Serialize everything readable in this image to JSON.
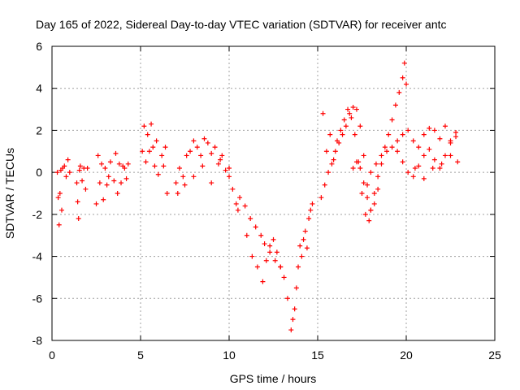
{
  "chart_data": {
    "type": "scatter",
    "title": "Day 165 of 2022, Sidereal Day-to-day VTEC variation (SDTVAR) for receiver antc",
    "xlabel": "GPS time / hours",
    "ylabel": "SDTVAR / TECUs",
    "xlim": [
      0,
      25
    ],
    "ylim": [
      -8,
      6
    ],
    "xticks": [
      0,
      5,
      10,
      15,
      20,
      25
    ],
    "xtick_labels": [
      "0",
      "5",
      "10",
      "15",
      "20",
      "25"
    ],
    "yticks": [
      -8,
      -6,
      -4,
      -2,
      0,
      2,
      4,
      6
    ],
    "ytick_labels": [
      "-8",
      "-6",
      "-4",
      "-2",
      "0",
      "2",
      "4",
      "6"
    ],
    "grid": true,
    "marker": "+",
    "color": "#ff0000",
    "series": [
      {
        "name": "SDTVAR",
        "x": [
          0.3,
          0.35,
          0.4,
          0.45,
          0.5,
          0.55,
          0.6,
          0.7,
          0.8,
          0.9,
          1.0,
          1.4,
          1.45,
          1.5,
          1.55,
          1.6,
          1.7,
          1.8,
          1.9,
          2.0,
          2.5,
          2.6,
          2.7,
          2.8,
          2.9,
          3.0,
          3.1,
          3.2,
          3.3,
          3.5,
          3.6,
          3.7,
          3.8,
          3.9,
          4.0,
          4.1,
          4.2,
          4.3,
          5.1,
          5.2,
          5.3,
          5.4,
          5.5,
          5.6,
          5.7,
          5.8,
          5.9,
          6.0,
          6.2,
          6.3,
          6.4,
          6.5,
          7.0,
          7.2,
          7.4,
          7.6,
          7.8,
          8.0,
          8.2,
          8.4,
          8.6,
          8.8,
          9.0,
          9.2,
          9.4,
          9.6,
          9.8,
          10.0,
          10.2,
          10.4,
          7.1,
          7.5,
          8.0,
          8.5,
          9.0,
          9.5,
          10.0,
          10.5,
          11.0,
          11.3,
          11.6,
          11.9,
          12.1,
          12.3,
          12.5,
          12.7,
          12.9,
          10.6,
          10.9,
          11.2,
          11.5,
          11.8,
          12.0,
          12.3,
          12.6,
          12.9,
          13.1,
          13.3,
          13.5,
          13.6,
          13.7,
          13.8,
          13.9,
          14.0,
          14.1,
          14.2,
          14.3,
          14.4,
          14.5,
          14.6,
          14.7,
          15.2,
          15.3,
          15.5,
          15.7,
          15.9,
          16.1,
          16.3,
          16.5,
          16.7,
          16.9,
          17.1,
          17.3,
          17.5,
          17.7,
          17.9,
          15.4,
          15.6,
          15.8,
          16.0,
          16.2,
          16.4,
          16.6,
          16.8,
          17.0,
          17.2,
          17.4,
          17.6,
          17.8,
          18.0,
          18.2,
          18.4,
          17.0,
          17.2,
          17.4,
          17.6,
          17.8,
          18.0,
          18.2,
          18.4,
          18.6,
          18.8,
          19.0,
          19.2,
          19.4,
          19.6,
          19.8,
          19.9,
          20.0,
          18.0,
          18.3,
          18.6,
          18.9,
          19.2,
          19.5,
          19.8,
          20.1,
          20.4,
          20.7,
          21.0,
          21.3,
          21.6,
          21.9,
          22.2,
          22.5,
          22.8,
          19.5,
          19.8,
          20.1,
          20.4,
          20.7,
          21.0,
          21.3,
          21.6,
          21.9,
          22.2,
          22.5,
          22.8,
          20.5,
          21.0,
          21.5,
          22.0,
          22.5,
          22.9
        ],
        "y": [
          0.0,
          -1.2,
          -2.5,
          -1.0,
          0.1,
          -1.8,
          0.2,
          0.3,
          -0.2,
          0.6,
          0.0,
          -0.5,
          -1.4,
          -2.2,
          0.1,
          0.3,
          -0.4,
          0.2,
          -0.8,
          0.2,
          -1.5,
          0.8,
          -0.5,
          0.4,
          -1.3,
          0.2,
          -0.6,
          -0.2,
          0.5,
          -0.4,
          0.9,
          -1.0,
          0.4,
          -0.5,
          0.3,
          0.2,
          -0.3,
          0.4,
          1.0,
          2.2,
          0.5,
          1.8,
          1.0,
          2.3,
          1.2,
          0.3,
          1.5,
          -0.1,
          0.8,
          0.3,
          1.2,
          -1.0,
          -0.5,
          0.2,
          -0.2,
          0.8,
          1.0,
          1.5,
          1.2,
          0.8,
          1.6,
          1.4,
          0.9,
          1.2,
          0.4,
          0.8,
          0.1,
          -0.2,
          -0.8,
          -1.5,
          -1.0,
          -0.6,
          -0.2,
          0.3,
          -0.5,
          0.6,
          0.2,
          -1.8,
          -3.0,
          -4.0,
          -4.5,
          -5.2,
          -4.2,
          -3.5,
          -3.2,
          -3.8,
          -4.5,
          -1.2,
          -1.6,
          -2.2,
          -2.6,
          -3.0,
          -3.4,
          -3.8,
          -4.2,
          -4.5,
          -5.0,
          -6.0,
          -7.5,
          -7.0,
          -6.5,
          -5.5,
          -4.5,
          -3.5,
          -4.0,
          -3.2,
          -2.8,
          -3.6,
          -2.2,
          -1.8,
          -1.5,
          -1.2,
          2.8,
          1.0,
          1.8,
          0.6,
          1.5,
          2.0,
          2.5,
          3.0,
          2.6,
          1.8,
          0.5,
          -1.0,
          -2.0,
          -2.3,
          -0.6,
          0.0,
          0.4,
          1.0,
          1.4,
          1.8,
          2.2,
          2.8,
          3.1,
          3.0,
          2.2,
          0.8,
          -0.6,
          -1.8,
          -1.5,
          -0.8,
          0.2,
          0.5,
          0.2,
          -0.5,
          -1.2,
          -1.8,
          -1.0,
          -0.2,
          0.4,
          1.2,
          1.8,
          2.5,
          3.2,
          3.8,
          4.5,
          5.2,
          4.2,
          0.0,
          0.4,
          0.8,
          1.0,
          1.2,
          1.5,
          1.8,
          2.0,
          1.5,
          1.2,
          1.8,
          2.1,
          2.0,
          1.6,
          2.2,
          1.5,
          1.9,
          1.0,
          0.5,
          0.0,
          -0.2,
          0.3,
          0.8,
          1.1,
          0.6,
          0.2,
          0.8,
          1.4,
          1.7,
          0.2,
          -0.3,
          0.2,
          0.4,
          0.8,
          0.5
        ]
      }
    ]
  }
}
